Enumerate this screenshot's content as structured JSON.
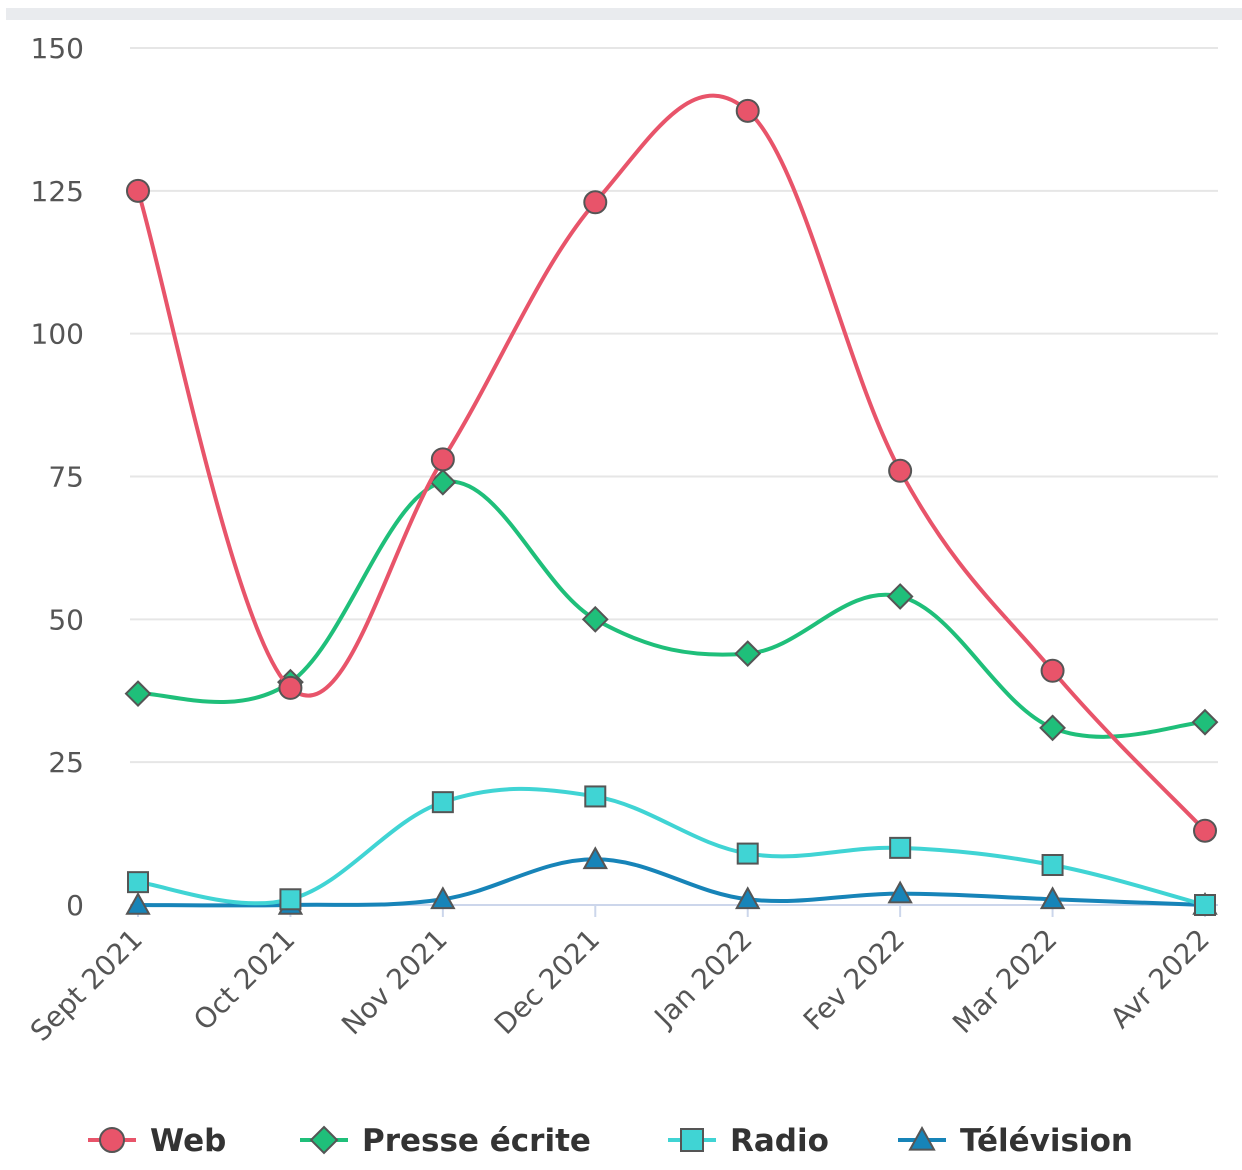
{
  "chart_data": {
    "type": "line",
    "title": "",
    "xlabel": "",
    "ylabel": "",
    "ylim": [
      0,
      150
    ],
    "yticks": [
      "0",
      "25",
      "50",
      "75",
      "100",
      "125",
      "150"
    ],
    "categories": [
      "Sept 2021",
      "Oct 2021",
      "Nov 2021",
      "Dec 2021",
      "Jan 2022",
      "Fev 2022",
      "Mar 2022",
      "Avr 2022"
    ],
    "grid": true,
    "legend_position": "bottom",
    "series": [
      {
        "name": "Web",
        "values": [
          125,
          38,
          78,
          123,
          139,
          76,
          41,
          13
        ],
        "color": "#e8546a",
        "marker": "circle"
      },
      {
        "name": "Presse écrite",
        "values": [
          37,
          39,
          74,
          50,
          44,
          54,
          31,
          32
        ],
        "color": "#1fbf7a",
        "marker": "diamond"
      },
      {
        "name": "Radio",
        "values": [
          4,
          1,
          18,
          19,
          9,
          10,
          7,
          0
        ],
        "color": "#40d4d4",
        "marker": "square"
      },
      {
        "name": "Télévision",
        "values": [
          0,
          0,
          1,
          8,
          1,
          2,
          1,
          0
        ],
        "color": "#1784b8",
        "marker": "triangle"
      }
    ]
  }
}
